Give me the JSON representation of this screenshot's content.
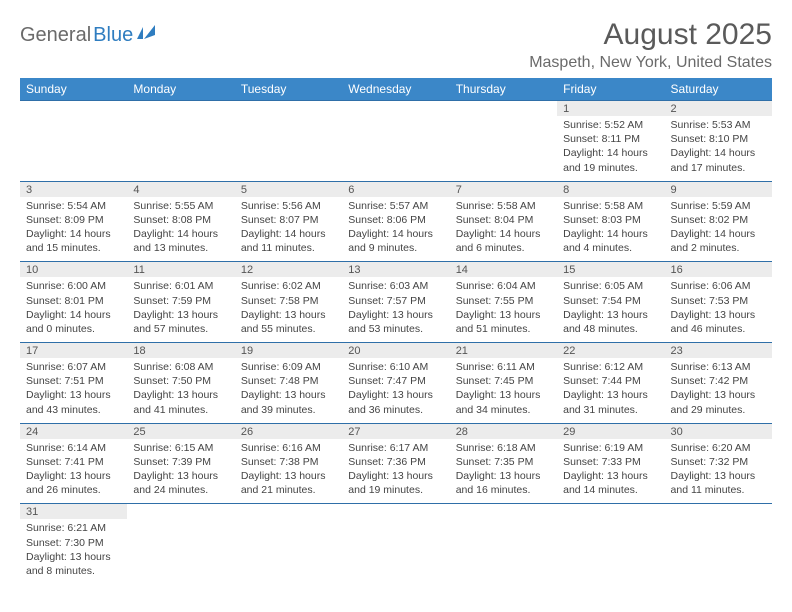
{
  "logo": {
    "part1": "General",
    "part2": "Blue"
  },
  "title": "August 2025",
  "location": "Maspeth, New York, United States",
  "headerColor": "#3b87c8",
  "borderColor": "#2f6fa8",
  "dayNumBg": "#ececec",
  "dayNames": [
    "Sunday",
    "Monday",
    "Tuesday",
    "Wednesday",
    "Thursday",
    "Friday",
    "Saturday"
  ],
  "weeks": [
    [
      null,
      null,
      null,
      null,
      null,
      {
        "n": "1",
        "sunrise": "5:52 AM",
        "sunset": "8:11 PM",
        "daylight": "14 hours and 19 minutes."
      },
      {
        "n": "2",
        "sunrise": "5:53 AM",
        "sunset": "8:10 PM",
        "daylight": "14 hours and 17 minutes."
      }
    ],
    [
      {
        "n": "3",
        "sunrise": "5:54 AM",
        "sunset": "8:09 PM",
        "daylight": "14 hours and 15 minutes."
      },
      {
        "n": "4",
        "sunrise": "5:55 AM",
        "sunset": "8:08 PM",
        "daylight": "14 hours and 13 minutes."
      },
      {
        "n": "5",
        "sunrise": "5:56 AM",
        "sunset": "8:07 PM",
        "daylight": "14 hours and 11 minutes."
      },
      {
        "n": "6",
        "sunrise": "5:57 AM",
        "sunset": "8:06 PM",
        "daylight": "14 hours and 9 minutes."
      },
      {
        "n": "7",
        "sunrise": "5:58 AM",
        "sunset": "8:04 PM",
        "daylight": "14 hours and 6 minutes."
      },
      {
        "n": "8",
        "sunrise": "5:58 AM",
        "sunset": "8:03 PM",
        "daylight": "14 hours and 4 minutes."
      },
      {
        "n": "9",
        "sunrise": "5:59 AM",
        "sunset": "8:02 PM",
        "daylight": "14 hours and 2 minutes."
      }
    ],
    [
      {
        "n": "10",
        "sunrise": "6:00 AM",
        "sunset": "8:01 PM",
        "daylight": "14 hours and 0 minutes."
      },
      {
        "n": "11",
        "sunrise": "6:01 AM",
        "sunset": "7:59 PM",
        "daylight": "13 hours and 57 minutes."
      },
      {
        "n": "12",
        "sunrise": "6:02 AM",
        "sunset": "7:58 PM",
        "daylight": "13 hours and 55 minutes."
      },
      {
        "n": "13",
        "sunrise": "6:03 AM",
        "sunset": "7:57 PM",
        "daylight": "13 hours and 53 minutes."
      },
      {
        "n": "14",
        "sunrise": "6:04 AM",
        "sunset": "7:55 PM",
        "daylight": "13 hours and 51 minutes."
      },
      {
        "n": "15",
        "sunrise": "6:05 AM",
        "sunset": "7:54 PM",
        "daylight": "13 hours and 48 minutes."
      },
      {
        "n": "16",
        "sunrise": "6:06 AM",
        "sunset": "7:53 PM",
        "daylight": "13 hours and 46 minutes."
      }
    ],
    [
      {
        "n": "17",
        "sunrise": "6:07 AM",
        "sunset": "7:51 PM",
        "daylight": "13 hours and 43 minutes."
      },
      {
        "n": "18",
        "sunrise": "6:08 AM",
        "sunset": "7:50 PM",
        "daylight": "13 hours and 41 minutes."
      },
      {
        "n": "19",
        "sunrise": "6:09 AM",
        "sunset": "7:48 PM",
        "daylight": "13 hours and 39 minutes."
      },
      {
        "n": "20",
        "sunrise": "6:10 AM",
        "sunset": "7:47 PM",
        "daylight": "13 hours and 36 minutes."
      },
      {
        "n": "21",
        "sunrise": "6:11 AM",
        "sunset": "7:45 PM",
        "daylight": "13 hours and 34 minutes."
      },
      {
        "n": "22",
        "sunrise": "6:12 AM",
        "sunset": "7:44 PM",
        "daylight": "13 hours and 31 minutes."
      },
      {
        "n": "23",
        "sunrise": "6:13 AM",
        "sunset": "7:42 PM",
        "daylight": "13 hours and 29 minutes."
      }
    ],
    [
      {
        "n": "24",
        "sunrise": "6:14 AM",
        "sunset": "7:41 PM",
        "daylight": "13 hours and 26 minutes."
      },
      {
        "n": "25",
        "sunrise": "6:15 AM",
        "sunset": "7:39 PM",
        "daylight": "13 hours and 24 minutes."
      },
      {
        "n": "26",
        "sunrise": "6:16 AM",
        "sunset": "7:38 PM",
        "daylight": "13 hours and 21 minutes."
      },
      {
        "n": "27",
        "sunrise": "6:17 AM",
        "sunset": "7:36 PM",
        "daylight": "13 hours and 19 minutes."
      },
      {
        "n": "28",
        "sunrise": "6:18 AM",
        "sunset": "7:35 PM",
        "daylight": "13 hours and 16 minutes."
      },
      {
        "n": "29",
        "sunrise": "6:19 AM",
        "sunset": "7:33 PM",
        "daylight": "13 hours and 14 minutes."
      },
      {
        "n": "30",
        "sunrise": "6:20 AM",
        "sunset": "7:32 PM",
        "daylight": "13 hours and 11 minutes."
      }
    ],
    [
      {
        "n": "31",
        "sunrise": "6:21 AM",
        "sunset": "7:30 PM",
        "daylight": "13 hours and 8 minutes."
      },
      null,
      null,
      null,
      null,
      null,
      null
    ]
  ]
}
